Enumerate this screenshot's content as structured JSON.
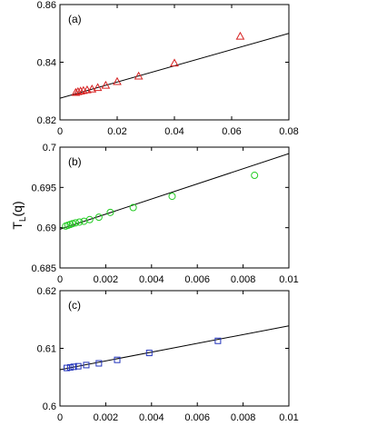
{
  "ylabel_shared": "T_L(q)",
  "chart_data": [
    {
      "type": "scatter",
      "panel_label": "(a)",
      "xlim": [
        0,
        0.08
      ],
      "ylim": [
        0.82,
        0.86
      ],
      "xticks": [
        "0",
        "0.02",
        "0.04",
        "0.06",
        "0.08"
      ],
      "yticks": [
        "0.82",
        "0.84",
        "0.86"
      ],
      "marker": "triangle",
      "color": "#d62020",
      "series": [
        {
          "x": [
            0.0055,
            0.0063,
            0.0072,
            0.0082,
            0.0095,
            0.0112,
            0.0132,
            0.016,
            0.02,
            0.0275,
            0.04,
            0.063
          ],
          "y": [
            0.8295,
            0.8298,
            0.83,
            0.8302,
            0.8304,
            0.8307,
            0.8312,
            0.832,
            0.8333,
            0.8352,
            0.8397,
            0.849
          ]
        }
      ],
      "fit": {
        "x": [
          0,
          0.08
        ],
        "y": [
          0.8275,
          0.85
        ]
      }
    },
    {
      "type": "scatter",
      "panel_label": "(b)",
      "xlim": [
        0,
        0.01
      ],
      "ylim": [
        0.685,
        0.7
      ],
      "xticks": [
        "0",
        "0.002",
        "0.004",
        "0.006",
        "0.008",
        "0.01"
      ],
      "yticks": [
        "0.685",
        "0.69",
        "0.695",
        "0.7"
      ],
      "marker": "circle",
      "color": "#22cc22",
      "series": [
        {
          "x": [
            0.00025,
            0.00035,
            0.00045,
            0.00055,
            0.00068,
            0.00085,
            0.00105,
            0.0013,
            0.0017,
            0.0022,
            0.0032,
            0.0049,
            0.0085
          ],
          "y": [
            0.6902,
            0.6903,
            0.6904,
            0.6905,
            0.6906,
            0.6907,
            0.6908,
            0.691,
            0.6913,
            0.6919,
            0.6925,
            0.6939,
            0.6965
          ]
        }
      ],
      "fit": {
        "x": [
          0,
          0.01
        ],
        "y": [
          0.6898,
          0.6992
        ]
      }
    },
    {
      "type": "scatter",
      "panel_label": "(c)",
      "xlim": [
        0,
        0.01
      ],
      "ylim": [
        0.6,
        0.62
      ],
      "xticks": [
        "0",
        "0.002",
        "0.004",
        "0.006",
        "0.008",
        "0.01"
      ],
      "yticks": [
        "0.6",
        "0.61",
        "0.62"
      ],
      "marker": "square",
      "color": "#2233bb",
      "series": [
        {
          "x": [
            0.0003,
            0.00045,
            0.0006,
            0.0008,
            0.00115,
            0.0017,
            0.0025,
            0.0039,
            0.0069
          ],
          "y": [
            0.6066,
            0.6067,
            0.6068,
            0.6069,
            0.6071,
            0.6074,
            0.608,
            0.6092,
            0.6113
          ]
        }
      ],
      "fit": {
        "x": [
          0,
          0.01
        ],
        "y": [
          0.6063,
          0.6139
        ]
      }
    }
  ]
}
